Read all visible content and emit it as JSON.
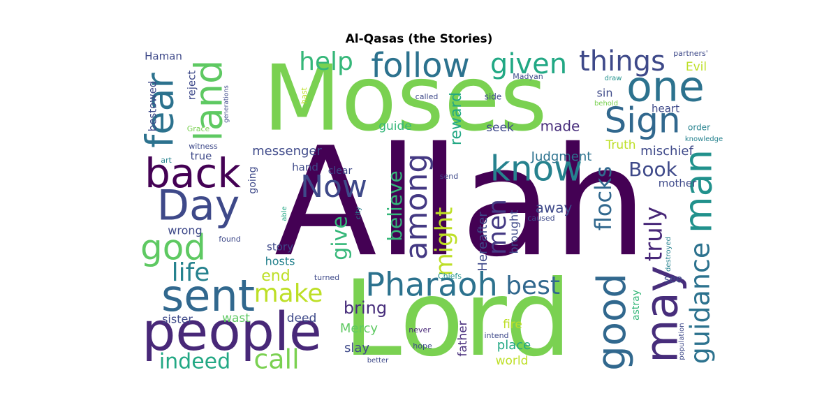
{
  "chart_data": {
    "type": "wordcloud",
    "title": "Al-Qasas (the Stories)",
    "words": [
      {
        "text": "Allah",
        "weight": 100,
        "color": "#440154"
      },
      {
        "text": "Lord",
        "weight": 92,
        "color": "#7ad151"
      },
      {
        "text": "Moses",
        "weight": 85,
        "color": "#7ad151"
      },
      {
        "text": "people",
        "weight": 48,
        "color": "#482878"
      },
      {
        "text": "Pharaoh",
        "weight": 38,
        "color": "#2c728e"
      },
      {
        "text": "sent",
        "weight": 40,
        "color": "#31688e"
      },
      {
        "text": "one",
        "weight": 38,
        "color": "#2c728e"
      },
      {
        "text": "Day",
        "weight": 38,
        "color": "#3e4989"
      },
      {
        "text": "back",
        "weight": 36,
        "color": "#440154"
      },
      {
        "text": "may",
        "weight": 40,
        "color": "#472d7b"
      },
      {
        "text": "good",
        "weight": 38,
        "color": "#31688e"
      },
      {
        "text": "fear",
        "weight": 32,
        "color": "#2c728e"
      },
      {
        "text": "land",
        "weight": 32,
        "color": "#5ec962"
      },
      {
        "text": "follow",
        "weight": 32,
        "color": "#2c728e"
      },
      {
        "text": "Sign",
        "weight": 32,
        "color": "#31688e"
      },
      {
        "text": "know",
        "weight": 34,
        "color": "#26828e"
      },
      {
        "text": "Now",
        "weight": 30,
        "color": "#3e4989"
      },
      {
        "text": "god",
        "weight": 34,
        "color": "#5ec962"
      },
      {
        "text": "man",
        "weight": 34,
        "color": "#21918c"
      },
      {
        "text": "among",
        "weight": 30,
        "color": "#443983"
      },
      {
        "text": "guidance",
        "weight": 28,
        "color": "#2c728e"
      },
      {
        "text": "given",
        "weight": 26,
        "color": "#22a884"
      },
      {
        "text": "things",
        "weight": 26,
        "color": "#3e4989"
      },
      {
        "text": "call",
        "weight": 24,
        "color": "#7ad151"
      },
      {
        "text": "make",
        "weight": 24,
        "color": "#bddf26"
      },
      {
        "text": "best",
        "weight": 24,
        "color": "#31688e"
      },
      {
        "text": "life",
        "weight": 24,
        "color": "#26828e"
      },
      {
        "text": "indeed",
        "weight": 22,
        "color": "#22a884"
      },
      {
        "text": "men",
        "weight": 24,
        "color": "#443983"
      },
      {
        "text": "flocks",
        "weight": 22,
        "color": "#31688e"
      },
      {
        "text": "truly",
        "weight": 22,
        "color": "#482878"
      },
      {
        "text": "might",
        "weight": 22,
        "color": "#bddf26"
      },
      {
        "text": "help",
        "weight": 22,
        "color": "#35b779"
      },
      {
        "text": "give",
        "weight": 22,
        "color": "#35b779"
      },
      {
        "text": "believe",
        "weight": 20,
        "color": "#35b779"
      },
      {
        "text": "Book",
        "weight": 20,
        "color": "#3e4989"
      },
      {
        "text": "bring",
        "weight": 18,
        "color": "#472d7b"
      },
      {
        "text": "end",
        "weight": 18,
        "color": "#bddf26"
      },
      {
        "text": "reward",
        "weight": 16,
        "color": "#22a884"
      },
      {
        "text": "messenger",
        "weight": 16,
        "color": "#3e4989"
      },
      {
        "text": "Judgment",
        "weight": 16,
        "color": "#2c728e"
      },
      {
        "text": "made",
        "weight": 16,
        "color": "#472d7b"
      },
      {
        "text": "Mercy",
        "weight": 14,
        "color": "#5ec962"
      },
      {
        "text": "away",
        "weight": 14,
        "color": "#3e4989"
      },
      {
        "text": "Hereafter",
        "weight": 14,
        "color": "#3e4989"
      },
      {
        "text": "mischief",
        "weight": 14,
        "color": "#3e4989"
      },
      {
        "text": "Truth",
        "weight": 14,
        "color": "#bddf26"
      },
      {
        "text": "wast",
        "weight": 14,
        "color": "#5ec962"
      },
      {
        "text": "deed",
        "weight": 14,
        "color": "#3e4989"
      },
      {
        "text": "fire",
        "weight": 14,
        "color": "#bddf26"
      },
      {
        "text": "place",
        "weight": 14,
        "color": "#22a884"
      },
      {
        "text": "world",
        "weight": 14,
        "color": "#bddf26"
      },
      {
        "text": "slay",
        "weight": 14,
        "color": "#3e4989"
      },
      {
        "text": "father",
        "weight": 14,
        "color": "#472d7b"
      },
      {
        "text": "brought",
        "weight": 14,
        "color": "#3e4989"
      },
      {
        "text": "sister",
        "weight": 12,
        "color": "#3e4989"
      },
      {
        "text": "seek",
        "weight": 13,
        "color": "#3e4989"
      },
      {
        "text": "guide",
        "weight": 13,
        "color": "#35b779"
      },
      {
        "text": "hand",
        "weight": 12,
        "color": "#3e4989"
      },
      {
        "text": "true",
        "weight": 12,
        "color": "#3e4989"
      },
      {
        "text": "wrong",
        "weight": 12,
        "color": "#3e4989"
      },
      {
        "text": "story",
        "weight": 12,
        "color": "#3e4989"
      },
      {
        "text": "hosts",
        "weight": 12,
        "color": "#26828e"
      },
      {
        "text": "mother",
        "weight": 12,
        "color": "#3e4989"
      },
      {
        "text": "see",
        "weight": 12,
        "color": "#3e4989"
      },
      {
        "text": "astray",
        "weight": 12,
        "color": "#35b779"
      },
      {
        "text": "sin",
        "weight": 12,
        "color": "#3e4989"
      },
      {
        "text": "heart",
        "weight": 12,
        "color": "#3e4989"
      },
      {
        "text": "Evil",
        "weight": 12,
        "color": "#bddf26"
      },
      {
        "text": "Haman",
        "weight": 12,
        "color": "#3e4989"
      },
      {
        "text": "reject",
        "weight": 12,
        "color": "#3e4989"
      },
      {
        "text": "bestowed",
        "weight": 12,
        "color": "#3e4989"
      },
      {
        "text": "going",
        "weight": 10,
        "color": "#3e4989"
      },
      {
        "text": "clear",
        "weight": 10,
        "color": "#3e4989"
      },
      {
        "text": "order",
        "weight": 10,
        "color": "#26828e"
      },
      {
        "text": "Grace",
        "weight": 9,
        "color": "#7ad151"
      },
      {
        "text": "witness",
        "weight": 9,
        "color": "#3e4989"
      },
      {
        "text": "art",
        "weight": 9,
        "color": "#26828e"
      },
      {
        "text": "found",
        "weight": 9,
        "color": "#3e4989"
      },
      {
        "text": "turned",
        "weight": 9,
        "color": "#3e4989"
      },
      {
        "text": "Chiefs",
        "weight": 9,
        "color": "#21918c"
      },
      {
        "text": "caused",
        "weight": 9,
        "color": "#3e4989"
      },
      {
        "text": "never",
        "weight": 9,
        "color": "#482878"
      },
      {
        "text": "hope",
        "weight": 9,
        "color": "#3e4989"
      },
      {
        "text": "better",
        "weight": 8,
        "color": "#3e4989"
      },
      {
        "text": "intend",
        "weight": 9,
        "color": "#3e4989"
      },
      {
        "text": "called",
        "weight": 9,
        "color": "#3e4989"
      },
      {
        "text": "side",
        "weight": 9,
        "color": "#3e4989"
      },
      {
        "text": "send",
        "weight": 9,
        "color": "#3e4989"
      },
      {
        "text": "Madyan",
        "weight": 9,
        "color": "#3e4989"
      },
      {
        "text": "draw",
        "weight": 8,
        "color": "#21918c"
      },
      {
        "text": "behold",
        "weight": 8,
        "color": "#7ad151"
      },
      {
        "text": "knowledge",
        "weight": 8,
        "color": "#26828e"
      },
      {
        "text": "partners'",
        "weight": 9,
        "color": "#3e4989"
      },
      {
        "text": "hast",
        "weight": 9,
        "color": "#bddf26"
      },
      {
        "text": "generations",
        "weight": 8,
        "color": "#3e4989"
      },
      {
        "text": "able",
        "weight": 8,
        "color": "#22a884"
      },
      {
        "text": "city",
        "weight": 8,
        "color": "#26828e"
      },
      {
        "text": "destroyed",
        "weight": 8,
        "color": "#26828e"
      },
      {
        "text": "population",
        "weight": 8,
        "color": "#3e4989"
      }
    ]
  }
}
